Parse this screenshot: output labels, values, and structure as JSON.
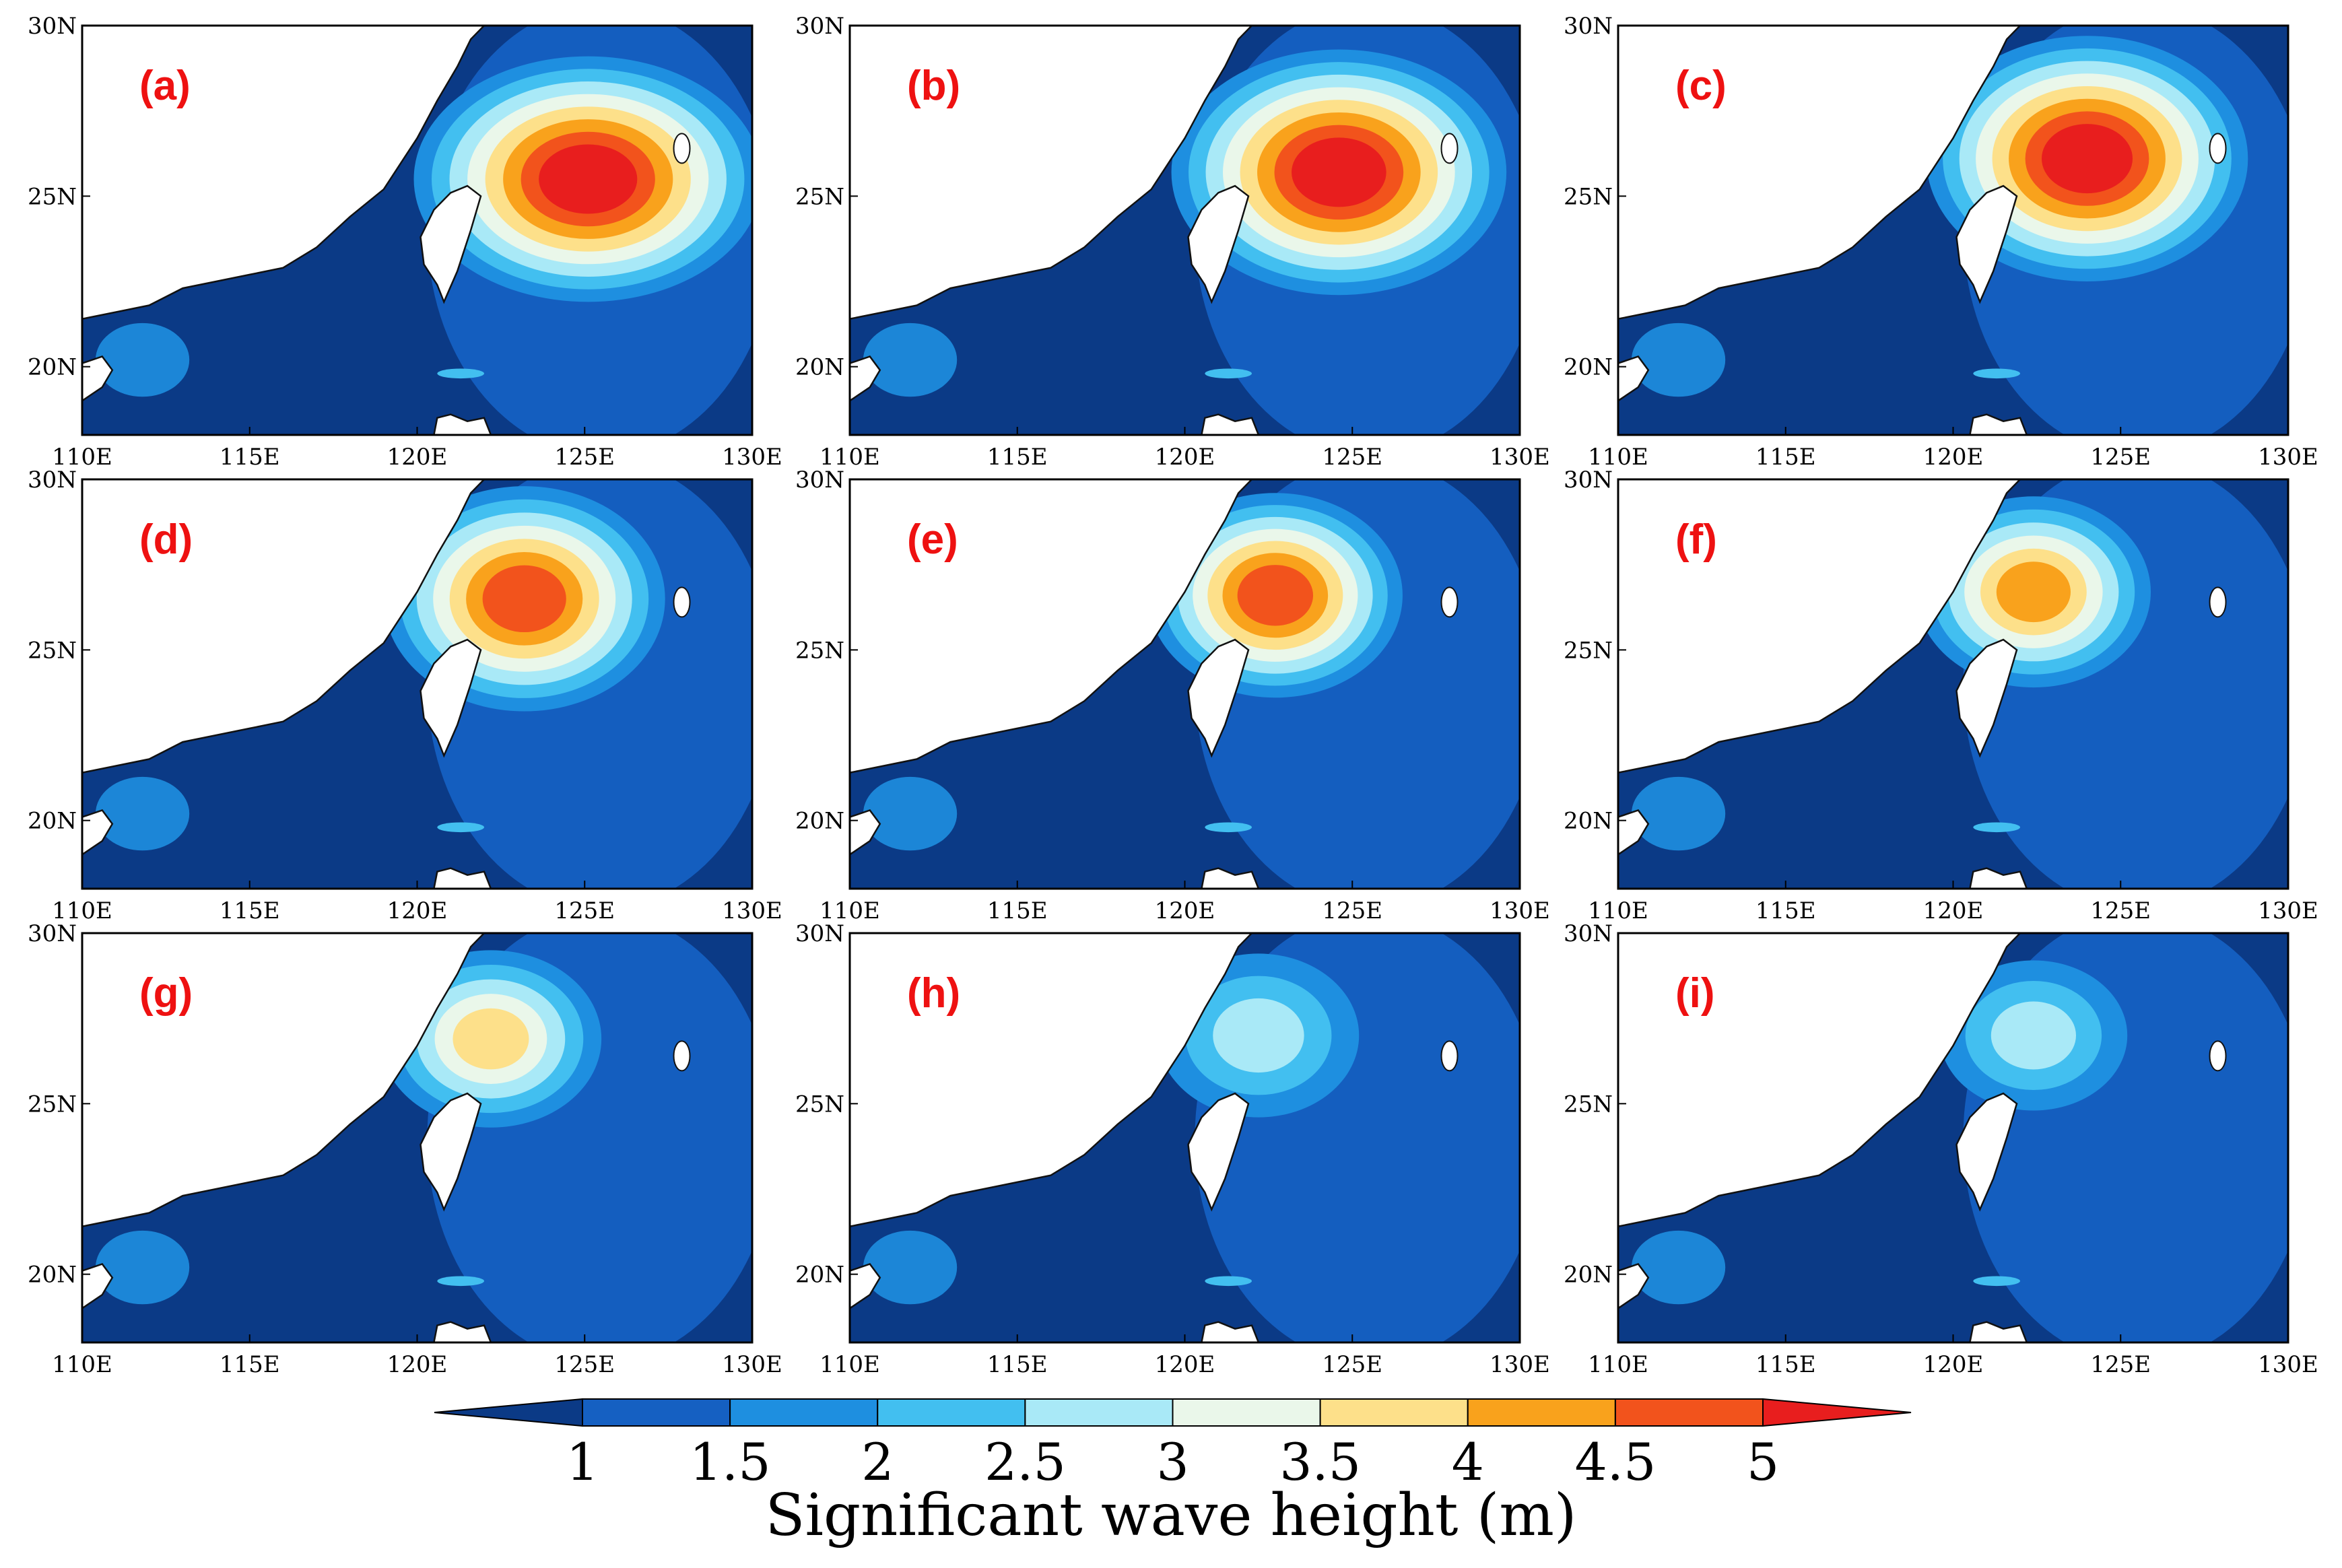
{
  "panels": [
    {
      "label": "(a)",
      "peak": 1.0,
      "cx": 125.1,
      "cy": 25.5,
      "rx": 5.2,
      "ry": 3.6
    },
    {
      "label": "(b)",
      "peak": 0.97,
      "cx": 124.6,
      "cy": 25.7,
      "rx": 5.0,
      "ry": 3.6
    },
    {
      "label": "(c)",
      "peak": 0.96,
      "cx": 124.0,
      "cy": 26.1,
      "rx": 4.8,
      "ry": 3.6
    },
    {
      "label": "(d)",
      "peak": 0.92,
      "cx": 123.2,
      "cy": 26.5,
      "rx": 4.2,
      "ry": 3.3
    },
    {
      "label": "(e)",
      "peak": 0.86,
      "cx": 122.7,
      "cy": 26.6,
      "rx": 3.8,
      "ry": 3.0
    },
    {
      "label": "(f)",
      "peak": 0.82,
      "cx": 122.4,
      "cy": 26.7,
      "rx": 3.5,
      "ry": 2.8
    },
    {
      "label": "(g)",
      "peak": 0.62,
      "cx": 122.2,
      "cy": 26.9,
      "rx": 3.3,
      "ry": 2.6
    },
    {
      "label": "(h)",
      "peak": 0.48,
      "cx": 122.2,
      "cy": 27.0,
      "rx": 3.0,
      "ry": 2.4
    },
    {
      "label": "(i)",
      "peak": 0.42,
      "cx": 122.4,
      "cy": 27.0,
      "rx": 2.8,
      "ry": 2.2
    }
  ],
  "map_extent": {
    "lon": [
      110,
      130
    ],
    "lat": [
      18,
      30
    ]
  },
  "x_ticks": [
    "110E",
    "115E",
    "120E",
    "125E",
    "130E"
  ],
  "y_ticks": [
    "20N",
    "25N",
    "30N"
  ],
  "colorbar": {
    "title": "Significant wave height (m)",
    "tick_labels": [
      "1",
      "1.5",
      "2",
      "2.5",
      "3",
      "3.5",
      "4",
      "4.5",
      "5"
    ],
    "colors": [
      "#0b3a86",
      "#1560c2",
      "#1e8fe0",
      "#42bff0",
      "#a9e9f7",
      "#eaf7ea",
      "#fde08a",
      "#f9a21c",
      "#f2531c",
      "#e81e1e"
    ]
  },
  "label_color": "#ee1111"
}
